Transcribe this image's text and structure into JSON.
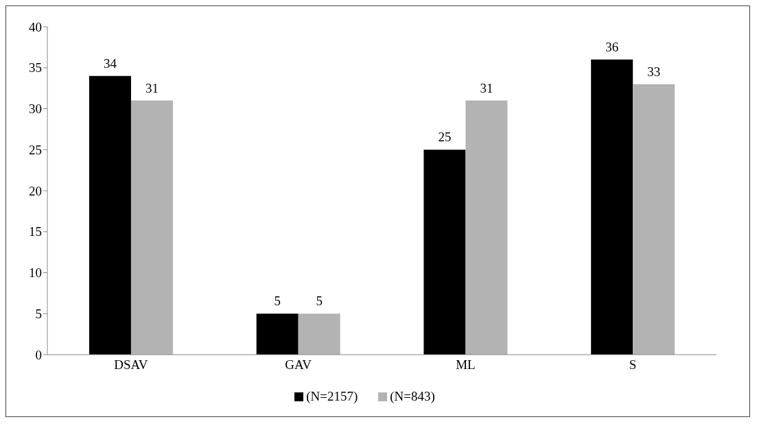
{
  "chart_data": {
    "type": "bar",
    "categories": [
      "DSAV",
      "GAV",
      "ML",
      "S"
    ],
    "series": [
      {
        "name": "(N=2157)",
        "color": "#000000",
        "values": [
          34,
          5,
          25,
          36
        ]
      },
      {
        "name": "(N=843)",
        "color": "#b3b3b3",
        "values": [
          31,
          5,
          31,
          33
        ]
      }
    ],
    "ylim": [
      0,
      40
    ],
    "yticks": [
      0,
      5,
      10,
      15,
      20,
      25,
      30,
      35,
      40
    ],
    "grid": false,
    "legend": "bottom",
    "data_labels": true
  }
}
